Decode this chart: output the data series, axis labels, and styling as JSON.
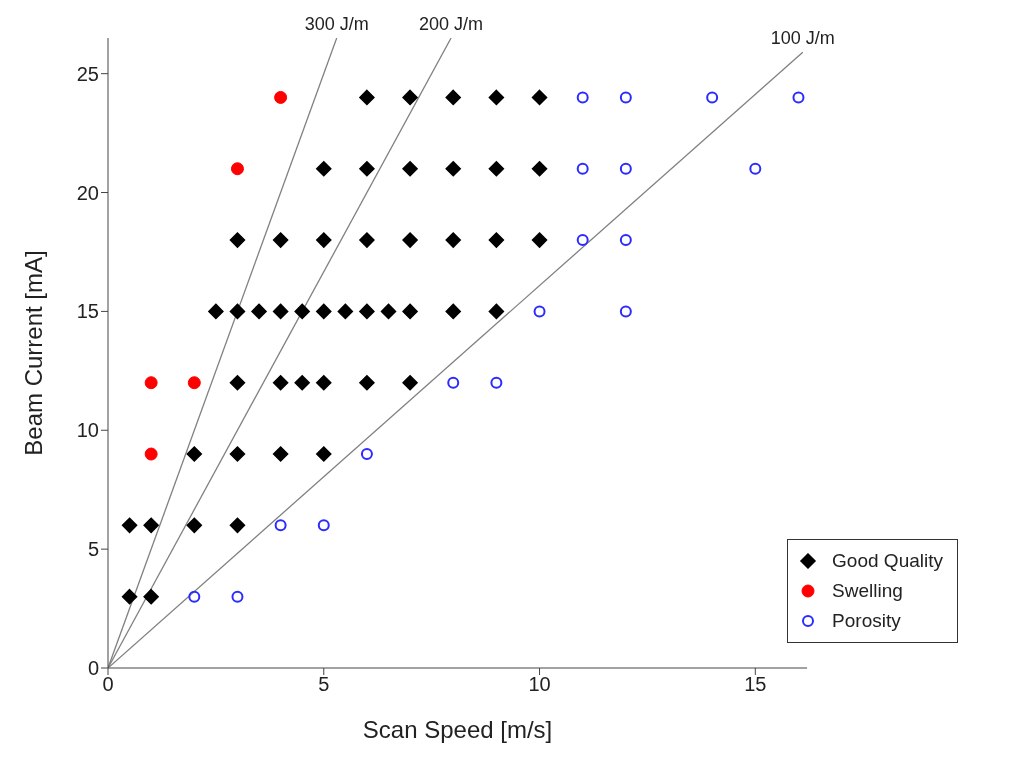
{
  "chart_data": {
    "type": "scatter",
    "xlabel": "Scan Speed [m/s]",
    "ylabel": "Beam Current [mA]",
    "xlim": [
      0,
      16.2
    ],
    "ylim": [
      0,
      26.5
    ],
    "xticks": [
      0,
      5,
      10,
      15
    ],
    "yticks": [
      0,
      5,
      10,
      15,
      20,
      25
    ],
    "grid": false,
    "legend": "bottom right",
    "series": [
      {
        "type": "line",
        "color": "#808080",
        "marker": "none",
        "line_style": "solid",
        "x": [
          0,
          5.3
        ],
        "values": [
          0,
          26.5
        ]
      },
      {
        "type": "line",
        "color": "#808080",
        "marker": "none",
        "line_style": "solid",
        "x": [
          0,
          7.95
        ],
        "values": [
          0,
          26.5
        ]
      },
      {
        "type": "line",
        "color": "#808080",
        "marker": "none",
        "line_style": "solid",
        "x": [
          0,
          16.1
        ],
        "values": [
          0,
          25.9
        ]
      },
      {
        "name": "Good Quality",
        "color": "#000000",
        "marker": "diamond",
        "x": [
          6,
          7,
          8,
          9,
          10,
          5,
          6,
          7,
          8,
          9,
          10,
          3,
          4,
          5,
          6,
          7,
          8,
          9,
          10,
          2.5,
          3,
          3.5,
          4,
          4.5,
          5,
          5.5,
          6,
          6.5,
          7,
          8,
          9,
          3,
          4,
          4.5,
          5,
          6,
          7,
          2,
          3,
          4,
          5,
          0.5,
          1,
          2,
          3,
          0.5,
          1
        ],
        "values": [
          24,
          24,
          24,
          24,
          24,
          21,
          21,
          21,
          21,
          21,
          21,
          18,
          18,
          18,
          18,
          18,
          18,
          18,
          18,
          15,
          15,
          15,
          15,
          15,
          15,
          15,
          15,
          15,
          15,
          15,
          15,
          12,
          12,
          12,
          12,
          12,
          12,
          9,
          9,
          9,
          9,
          6,
          6,
          6,
          6,
          3,
          3
        ]
      },
      {
        "name": "Swelling",
        "color": "#ff0000",
        "marker": "circle",
        "x": [
          4,
          3,
          1,
          2,
          1
        ],
        "values": [
          24,
          21,
          12,
          12,
          9
        ]
      },
      {
        "name": "Porosity",
        "color": "#2b2bff",
        "marker": "circle",
        "x": [
          11,
          12,
          14,
          16,
          11,
          12,
          15,
          11,
          12,
          10,
          12,
          8,
          9,
          6,
          4,
          5,
          2,
          3
        ],
        "values": [
          24,
          24,
          24,
          24,
          21,
          21,
          21,
          18,
          18,
          15,
          15,
          12,
          12,
          9,
          6,
          6,
          3,
          3
        ]
      }
    ],
    "annotations": [
      {
        "text": "300 J/m",
        "x": 5.3,
        "y": 26.5
      },
      {
        "text": "200 J/m",
        "x": 7.95,
        "y": 26.5
      },
      {
        "text": "100 J/m",
        "x": 16.1,
        "y": 25.9
      }
    ]
  }
}
